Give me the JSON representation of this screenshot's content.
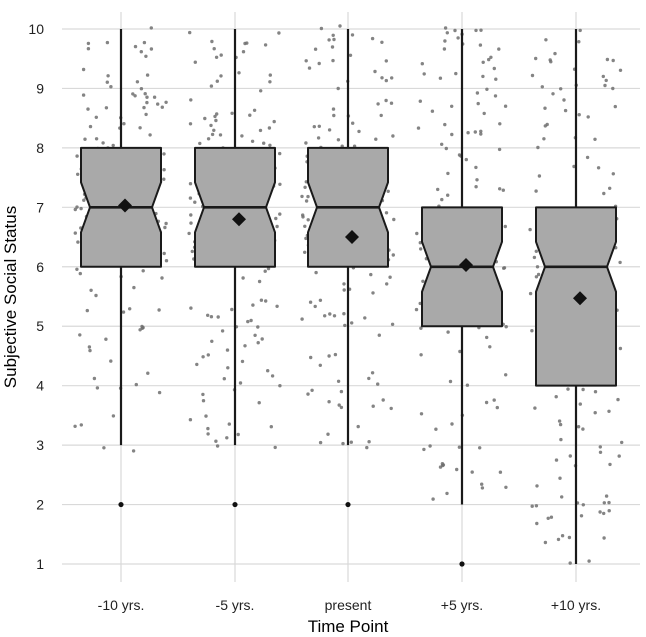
{
  "chart_data": {
    "type": "boxplot",
    "xlabel": "Time Point",
    "ylabel": "Subjective Social Status",
    "ylim": [
      0.75,
      10.25
    ],
    "y_ticks": [
      1,
      2,
      3,
      4,
      5,
      6,
      7,
      8,
      9,
      10
    ],
    "grid": true,
    "notched": true,
    "show_jittered_points": true,
    "mean_marker": "diamond",
    "categories": [
      "-10 yrs.",
      "-5 yrs.",
      "present",
      "+5 yrs.",
      "+10 yrs."
    ],
    "boxes": [
      {
        "category": "-10 yrs.",
        "whisker_low": 3,
        "q1": 6,
        "median": 7,
        "q3": 8,
        "whisker_high": 10,
        "mean": 7.03,
        "outliers": [
          2
        ]
      },
      {
        "category": "-5 yrs.",
        "whisker_low": 3,
        "q1": 6,
        "median": 7,
        "q3": 8,
        "whisker_high": 10,
        "mean": 6.8,
        "outliers": [
          2
        ]
      },
      {
        "category": "present",
        "whisker_low": 3,
        "q1": 6,
        "median": 7,
        "q3": 8,
        "whisker_high": 10,
        "mean": 6.5,
        "outliers": [
          2
        ]
      },
      {
        "category": "+5 yrs.",
        "whisker_low": 2,
        "q1": 5,
        "median": 6,
        "q3": 7,
        "whisker_high": 10,
        "mean": 6.03,
        "outliers": [
          1
        ]
      },
      {
        "category": "+10 yrs.",
        "whisker_low": 1,
        "q1": 4,
        "median": 6,
        "q3": 7,
        "whisker_high": 10,
        "mean": 5.47,
        "outliers": []
      }
    ],
    "colors": {
      "box_fill": "#a9a9a9",
      "box_stroke": "#1a1a1a",
      "points": "#6f6f6f",
      "grid": "#d9d9d9"
    }
  }
}
